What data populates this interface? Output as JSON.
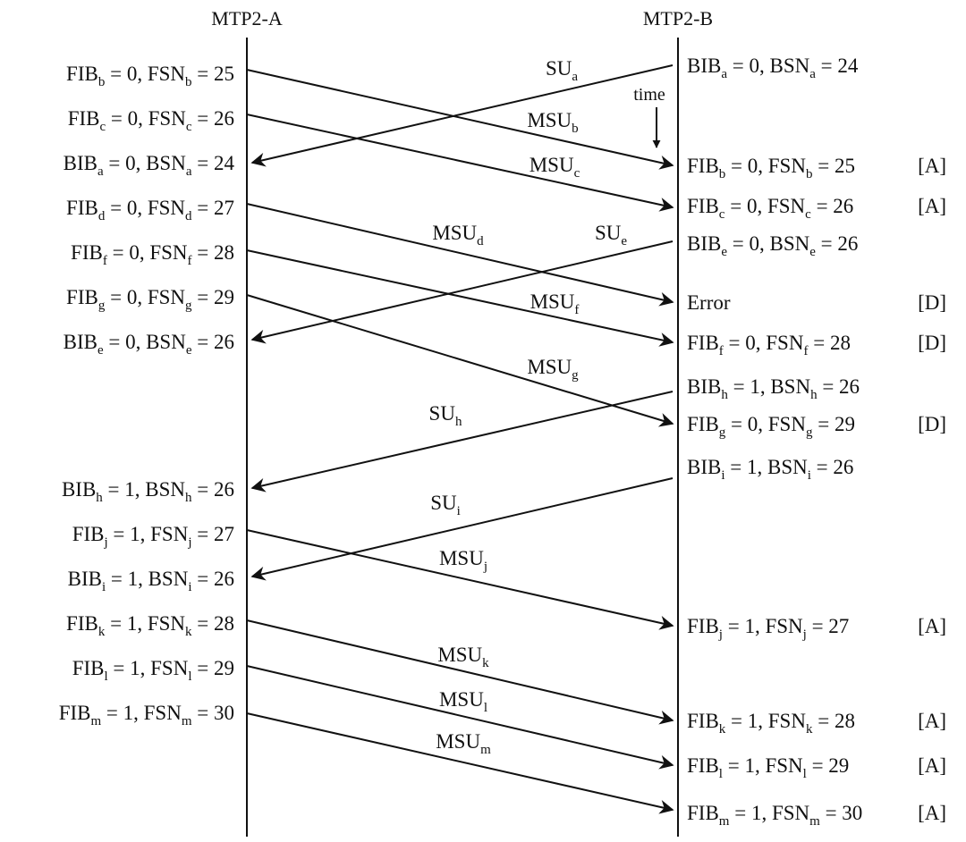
{
  "lifelines": {
    "a": "MTP2-A",
    "b": "MTP2-B"
  },
  "time_label": "time",
  "left_labels": [
    {
      "a": "FIB",
      "as": "b",
      "b": " = 0, FSN",
      "bs": "b",
      "c": " = 25"
    },
    {
      "a": "FIB",
      "as": "c",
      "b": " = 0, FSN",
      "bs": "c",
      "c": " = 26"
    },
    {
      "a": "BIB",
      "as": "a",
      "b": " = 0, BSN",
      "bs": "a",
      "c": " = 24"
    },
    {
      "a": "FIB",
      "as": "d",
      "b": " = 0, FSN",
      "bs": "d",
      "c": " = 27"
    },
    {
      "a": "FIB",
      "as": "f",
      "b": " = 0, FSN",
      "bs": "f",
      "c": " = 28"
    },
    {
      "a": "FIB",
      "as": "g",
      "b": " = 0, FSN",
      "bs": "g",
      "c": " = 29"
    },
    {
      "a": "BIB",
      "as": "e",
      "b": " = 0, BSN",
      "bs": "e",
      "c": " = 26"
    },
    {
      "a": "BIB",
      "as": "h",
      "b": " = 1, BSN",
      "bs": "h",
      "c": " = 26"
    },
    {
      "a": "FIB",
      "as": "j",
      "b": " = 1, FSN",
      "bs": "j",
      "c": " = 27"
    },
    {
      "a": "BIB",
      "as": "i",
      "b": " = 1, BSN",
      "bs": "i",
      "c": " = 26"
    },
    {
      "a": "FIB",
      "as": "k",
      "b": " = 1, FSN",
      "bs": "k",
      "c": " = 28"
    },
    {
      "a": "FIB",
      "as": "l",
      "b": " = 1, FSN",
      "bs": "l",
      "c": " = 29"
    },
    {
      "a": "FIB",
      "as": "m",
      "b": " = 1, FSN",
      "bs": "m",
      "c": " = 30"
    }
  ],
  "right_labels": [
    {
      "a": "BIB",
      "as": "a",
      "b": " = 0, BSN",
      "bs": "a",
      "c": " = 24",
      "tag": ""
    },
    {
      "a": "FIB",
      "as": "b",
      "b": " = 0, FSN",
      "bs": "b",
      "c": " = 25",
      "tag": "[A]"
    },
    {
      "a": "FIB",
      "as": "c",
      "b": " = 0, FSN",
      "bs": "c",
      "c": " = 26",
      "tag": "[A]"
    },
    {
      "a": "BIB",
      "as": "e",
      "b": " = 0, BSN",
      "bs": "e",
      "c": " = 26",
      "tag": ""
    },
    {
      "a": "Error",
      "as": "",
      "b": "",
      "bs": "",
      "c": "",
      "tag": "[D]"
    },
    {
      "a": "FIB",
      "as": "f",
      "b": " = 0, FSN",
      "bs": "f",
      "c": " = 28",
      "tag": "[D]"
    },
    {
      "a": "BIB",
      "as": "h",
      "b": " = 1, BSN",
      "bs": "h",
      "c": " = 26",
      "tag": ""
    },
    {
      "a": "FIB",
      "as": "g",
      "b": " = 0, FSN",
      "bs": "g",
      "c": " = 29",
      "tag": "[D]"
    },
    {
      "a": "BIB",
      "as": "i",
      "b": " = 1, BSN",
      "bs": "i",
      "c": " = 26",
      "tag": ""
    },
    {
      "a": "FIB",
      "as": "j",
      "b": " = 1, FSN",
      "bs": "j",
      "c": " = 27",
      "tag": "[A]"
    },
    {
      "a": "FIB",
      "as": "k",
      "b": " = 1, FSN",
      "bs": "k",
      "c": " = 28",
      "tag": "[A]"
    },
    {
      "a": "FIB",
      "as": "l",
      "b": " = 1, FSN",
      "bs": "l",
      "c": " = 29",
      "tag": "[A]"
    },
    {
      "a": "FIB",
      "as": "m",
      "b": " = 1, FSN",
      "bs": "m",
      "c": " = 30",
      "tag": "[A]"
    }
  ],
  "messages": [
    {
      "base": "SU",
      "sub": "a"
    },
    {
      "base": "MSU",
      "sub": "b"
    },
    {
      "base": "MSU",
      "sub": "c"
    },
    {
      "base": "MSU",
      "sub": "d"
    },
    {
      "base": "SU",
      "sub": "e"
    },
    {
      "base": "MSU",
      "sub": "f"
    },
    {
      "base": "MSU",
      "sub": "g"
    },
    {
      "base": "SU",
      "sub": "h"
    },
    {
      "base": "SU",
      "sub": "i"
    },
    {
      "base": "MSU",
      "sub": "j"
    },
    {
      "base": "MSU",
      "sub": "k"
    },
    {
      "base": "MSU",
      "sub": "l"
    },
    {
      "base": "MSU",
      "sub": "m"
    }
  ]
}
